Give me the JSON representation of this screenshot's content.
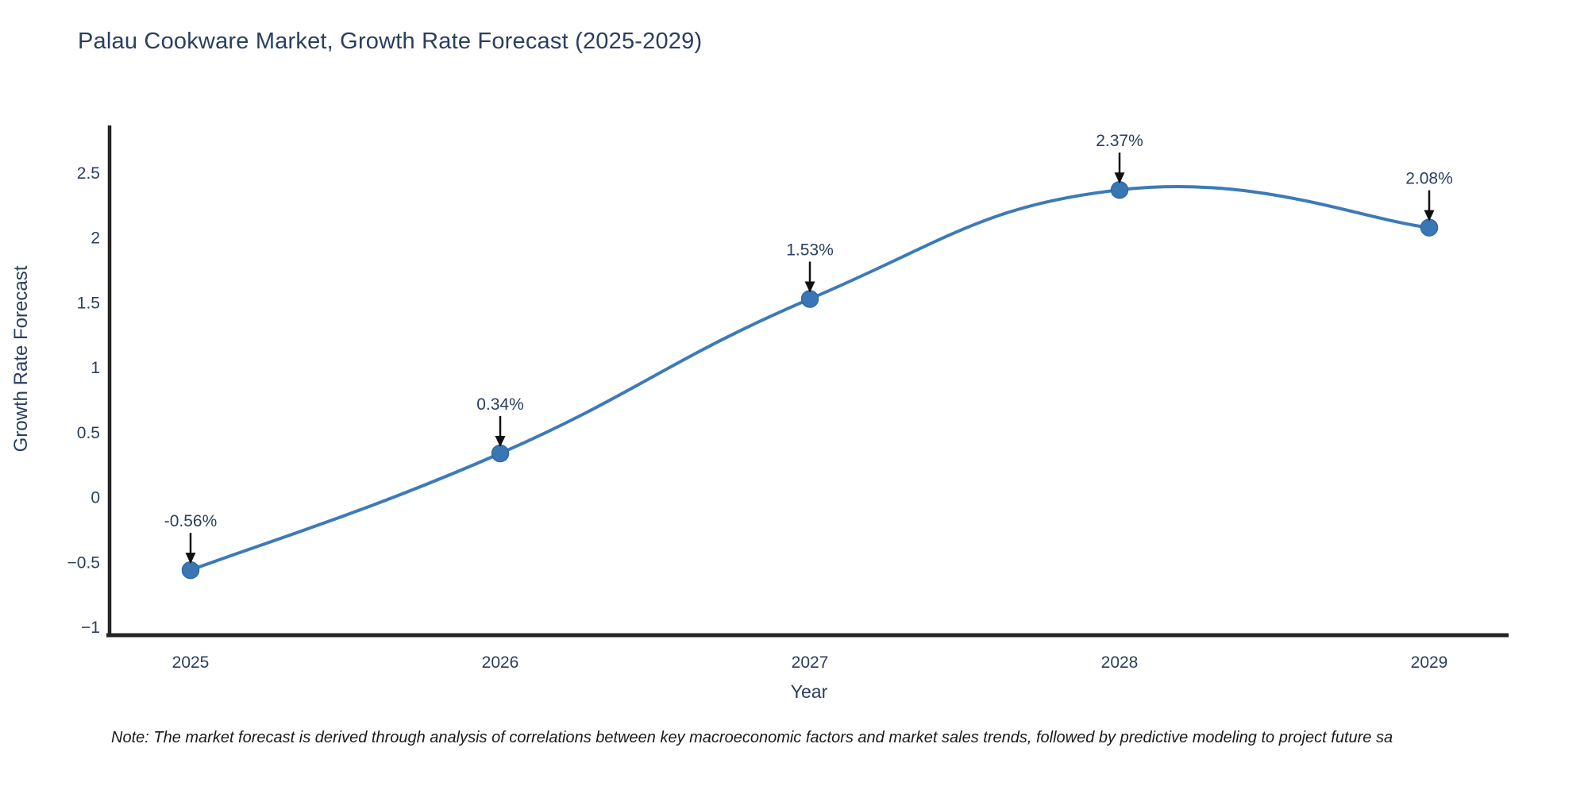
{
  "title": "Palau Cookware Market, Growth Rate Forecast (2025-2029)",
  "note": "Note: The market forecast is derived through analysis of correlations between key macroeconomic factors and market sales trends, followed by predictive modeling to project future sa",
  "chart_data": {
    "type": "line",
    "line_shape": "spline",
    "markers": true,
    "grid": false,
    "legend": "none",
    "title": "Palau Cookware Market, Growth Rate Forecast (2025-2029)",
    "xlabel": "Year",
    "ylabel": "Growth Rate Forecast",
    "categories": [
      "2025",
      "2026",
      "2027",
      "2028",
      "2029"
    ],
    "values": [
      -0.56,
      0.34,
      1.53,
      2.37,
      2.08
    ],
    "point_labels": [
      "-0.56%",
      "0.34%",
      "1.53%",
      "2.37%",
      "2.08%"
    ],
    "y_ticks": [
      -1,
      -0.5,
      0,
      0.5,
      1,
      1.5,
      2,
      2.5
    ],
    "y_tick_labels": [
      "−1",
      "−0.5",
      "0",
      "0.5",
      "1",
      "1.5",
      "2",
      "2.5"
    ],
    "ylim": [
      -1.07,
      2.87
    ],
    "colors": {
      "line": "#3d7ab8",
      "marker_fill": "#3a76b4",
      "marker_edge": "#2e6aa8",
      "axis_line": "#242424",
      "text": "#2a3f5f",
      "annotation_arrow": "#111111",
      "note_text": "#1a1a1a",
      "background": "#ffffff"
    }
  }
}
